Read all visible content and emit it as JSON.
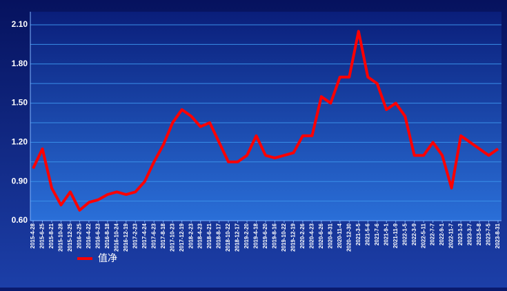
{
  "chart_data": {
    "type": "line",
    "categories": [
      "2015-4-28",
      "2015-6-25",
      "2015-8-21",
      "2015-10-28",
      "2015-12-25",
      "2016-2-25",
      "2016-4-22",
      "2016-6-23",
      "2016-8-18",
      "2016-10-24",
      "2016-12-19",
      "2017-2-23",
      "2017-4-24",
      "2017-6-23",
      "2017-8-18",
      "2017-10-23",
      "2017-12-19",
      "2018-2-23",
      "2018-4-23",
      "2018-6-21",
      "2018-8-17",
      "2018-10-22",
      "2018-12-17",
      "2019-2-20",
      "2019-4-18",
      "2019-6-20",
      "2019-8-16",
      "2019-10-22",
      "2019-12-19",
      "2020-2-26",
      "2020-4-23",
      "2020-6-26",
      "2020-8-31",
      "2020-11-4",
      "2020-12-30",
      "2021-3-5",
      "2021-5-6",
      "2021-7-6",
      "2021-9-1",
      "2021-11-9",
      "2022-1-5",
      "2022-3-9",
      "2022-5-11",
      "2022-7-7",
      "2022-9-1",
      "2022-11-7",
      "2023-1-3",
      "2023-3-7",
      "2023-5-8",
      "2023-7-5",
      "2023-8-31"
    ],
    "series": [
      {
        "name": "值净",
        "color": "#ff0000",
        "values": [
          1.0,
          1.15,
          0.85,
          0.72,
          0.82,
          0.68,
          0.74,
          0.76,
          0.8,
          0.82,
          0.8,
          0.82,
          0.9,
          1.05,
          1.18,
          1.35,
          1.45,
          1.4,
          1.32,
          1.35,
          1.2,
          1.05,
          1.05,
          1.1,
          1.25,
          1.1,
          1.08,
          1.1,
          1.12,
          1.25,
          1.25,
          1.55,
          1.5,
          1.7,
          1.7,
          2.05,
          1.7,
          1.65,
          1.45,
          1.5,
          1.4,
          1.1,
          1.1,
          1.2,
          1.1,
          0.85,
          1.25,
          1.2,
          1.15,
          1.1,
          1.15
        ]
      }
    ],
    "ylim": [
      0.6,
      2.2
    ],
    "yticks": [
      {
        "value": 0.6,
        "label": "0.60"
      },
      {
        "value": 0.9,
        "label": "0.90"
      },
      {
        "value": 1.2,
        "label": "1.20"
      },
      {
        "value": 1.5,
        "label": "1.50"
      },
      {
        "value": 1.8,
        "label": "1.80"
      },
      {
        "value": 2.1,
        "label": "2.10"
      }
    ],
    "grid": true,
    "legend": "bottom-left"
  }
}
